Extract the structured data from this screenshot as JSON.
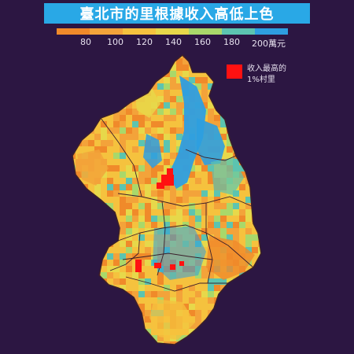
{
  "title": "臺北市的里根據收入高低上色",
  "legend": {
    "tick_labels": [
      "80",
      "100",
      "120",
      "140",
      "160",
      "180",
      "200萬元"
    ],
    "colors": [
      "#f08a2a",
      "#f3a33a",
      "#f5c23e",
      "#e7d84a",
      "#a9d86a",
      "#5cc4b0",
      "#2e9ee0"
    ]
  },
  "key": {
    "swatch_color": "#ff1111",
    "line1": "收入最高的",
    "line2": "1%村里"
  },
  "map": {
    "background_color": "#2c1642",
    "palette": [
      "#f08a2a",
      "#f3a33a",
      "#f5c23e",
      "#e7d84a",
      "#a9d86a",
      "#5cc4b0",
      "#2e9ee0"
    ],
    "top1_color": "#ff1111"
  }
}
